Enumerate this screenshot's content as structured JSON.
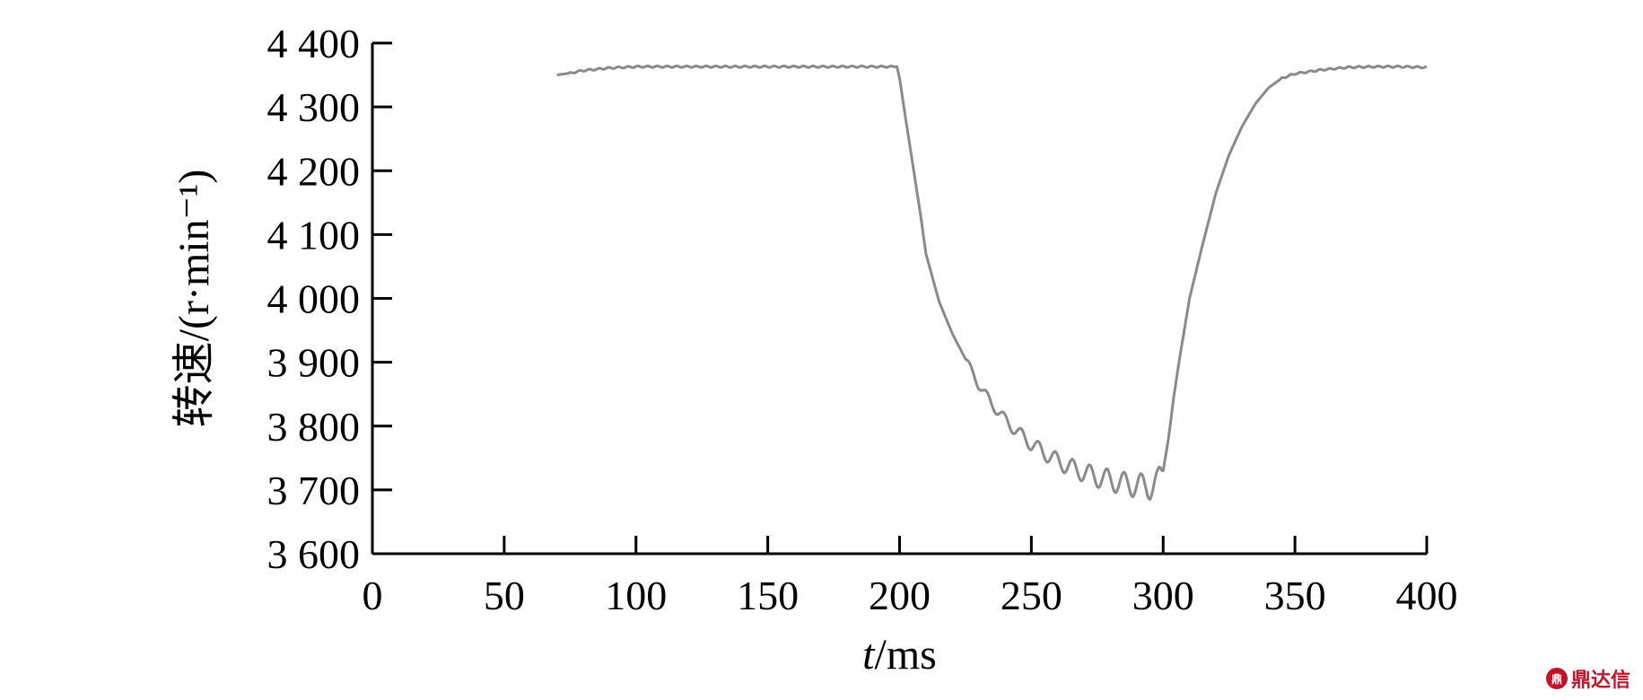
{
  "chart_data": {
    "type": "line",
    "ylabel": "转速/(r·min⁻¹)",
    "xlabel_italic": "t",
    "xlabel_unit": "/ms",
    "xlim": [
      0,
      400
    ],
    "ylim": [
      3600,
      4400
    ],
    "x_ticks": [
      0,
      50,
      100,
      150,
      200,
      250,
      300,
      350,
      400
    ],
    "x_tick_labels": [
      "0",
      "50",
      "100",
      "150",
      "200",
      "250",
      "300",
      "350",
      "400"
    ],
    "y_ticks": [
      3600,
      3700,
      3800,
      3900,
      4000,
      4100,
      4200,
      4300,
      4400
    ],
    "y_tick_labels": [
      "3 600",
      "3 700",
      "3 800",
      "3 900",
      "4 000",
      "4 100",
      "4 200",
      "4 300",
      "4 400"
    ],
    "series": [
      {
        "color": "#8a8a8a",
        "x": [
          70,
          75,
          80,
          90,
          100,
          120,
          140,
          160,
          180,
          195,
          199,
          200,
          202,
          205,
          208,
          210,
          215,
          220,
          225,
          230,
          235,
          240,
          245,
          250,
          255,
          260,
          265,
          270,
          275,
          280,
          285,
          290,
          295,
          298,
          300,
          302,
          304,
          306,
          308,
          310,
          315,
          320,
          325,
          330,
          335,
          340,
          345,
          350,
          360,
          370,
          380,
          390,
          400
        ],
        "y": [
          4350,
          4353,
          4357,
          4361,
          4363,
          4363,
          4363,
          4363,
          4363,
          4363,
          4363,
          4345,
          4290,
          4210,
          4130,
          4070,
          3995,
          3945,
          3905,
          3865,
          3835,
          3810,
          3790,
          3772,
          3758,
          3745,
          3735,
          3727,
          3720,
          3715,
          3710,
          3707,
          3705,
          3712,
          3730,
          3780,
          3845,
          3900,
          3950,
          4000,
          4085,
          4165,
          4225,
          4270,
          4305,
          4330,
          4345,
          4352,
          4358,
          4362,
          4363,
          4363,
          4362
        ]
      }
    ]
  },
  "watermark": {
    "logo_text": "鼎",
    "text": "鼎达信"
  }
}
